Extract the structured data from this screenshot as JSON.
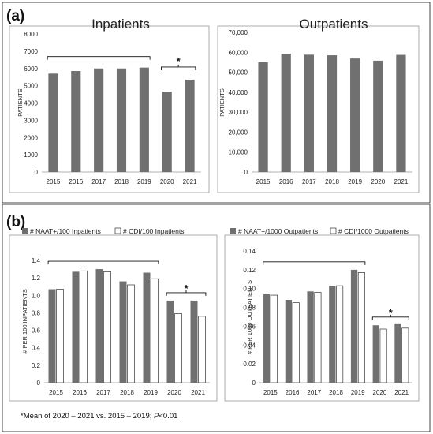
{
  "panel_a_label": "(a)",
  "panel_b_label": "(b)",
  "footnote_prefix": "*Mean of 2020 – 2021 vs. 2015 – 2019;  ",
  "footnote_p": "P",
  "footnote_suffix": "<0.01",
  "star": "*",
  "colors": {
    "dark": "#707070",
    "light": "#ffffff",
    "frame": "#999999"
  },
  "chart_data": [
    {
      "id": "inpatients",
      "type": "bar",
      "title": "Inpatients",
      "ylabel": "PATIENTS",
      "categories": [
        "2015",
        "2016",
        "2017",
        "2018",
        "2019",
        "2020",
        "2021"
      ],
      "series": [
        {
          "values": [
            5700,
            5850,
            6000,
            6000,
            6050,
            4650,
            5350
          ]
        }
      ],
      "ylim": [
        0,
        8000
      ],
      "yticks": [
        "0",
        "1000",
        "2000",
        "3000",
        "4000",
        "5000",
        "6000",
        "7000",
        "8000"
      ],
      "significance": "*"
    },
    {
      "id": "outpatients",
      "type": "bar",
      "title": "Outpatients",
      "ylabel": "PATIENTS",
      "categories": [
        "2015",
        "2016",
        "2017",
        "2018",
        "2019",
        "2020",
        "2021"
      ],
      "series": [
        {
          "values": [
            55000,
            59300,
            58800,
            58500,
            56900,
            55800,
            58700
          ]
        }
      ],
      "ylim": [
        0,
        70000
      ],
      "yticks": [
        "0",
        "10,000",
        "20,000",
        "30,000",
        "40,000",
        "50,000",
        "60,000",
        "70,000"
      ]
    },
    {
      "id": "inpatient-rates",
      "type": "bar",
      "ylabel": "# PER 100 INPATIENTS",
      "categories": [
        "2015",
        "2016",
        "2017",
        "2018",
        "2019",
        "2020",
        "2021"
      ],
      "series": [
        {
          "name": "# NAAT+/100 Inpatients",
          "values": [
            1.07,
            1.27,
            1.3,
            1.16,
            1.26,
            0.94,
            0.94
          ]
        },
        {
          "name": "# CDI/100 Inpatients",
          "values": [
            1.07,
            1.28,
            1.27,
            1.12,
            1.19,
            0.79,
            0.76
          ]
        }
      ],
      "ylim": [
        0,
        1.4
      ],
      "yticks": [
        "0",
        "0.2",
        "0.4",
        "0.6",
        "0.8",
        "1.0",
        "1.2",
        "1.4"
      ],
      "legend": "top",
      "significance": "*"
    },
    {
      "id": "outpatient-rates",
      "type": "bar",
      "ylabel": "# PER 1000 OUTPATIENTS",
      "categories": [
        "2015",
        "2016",
        "2017",
        "2018",
        "2019",
        "2020",
        "2021"
      ],
      "series": [
        {
          "name": "# NAAT+/1000 Outpatients",
          "values": [
            0.094,
            0.088,
            0.097,
            0.103,
            0.12,
            0.061,
            0.063
          ]
        },
        {
          "name": "# CDI/1000 Outpatients",
          "values": [
            0.093,
            0.085,
            0.096,
            0.103,
            0.117,
            0.057,
            0.058
          ]
        }
      ],
      "ylim": [
        0,
        0.14
      ],
      "yticks": [
        "0",
        "0.02",
        "0.04",
        "0.06",
        "0.08",
        "0.10",
        "0.12",
        "0.14"
      ],
      "legend": "top",
      "significance": "*"
    }
  ]
}
